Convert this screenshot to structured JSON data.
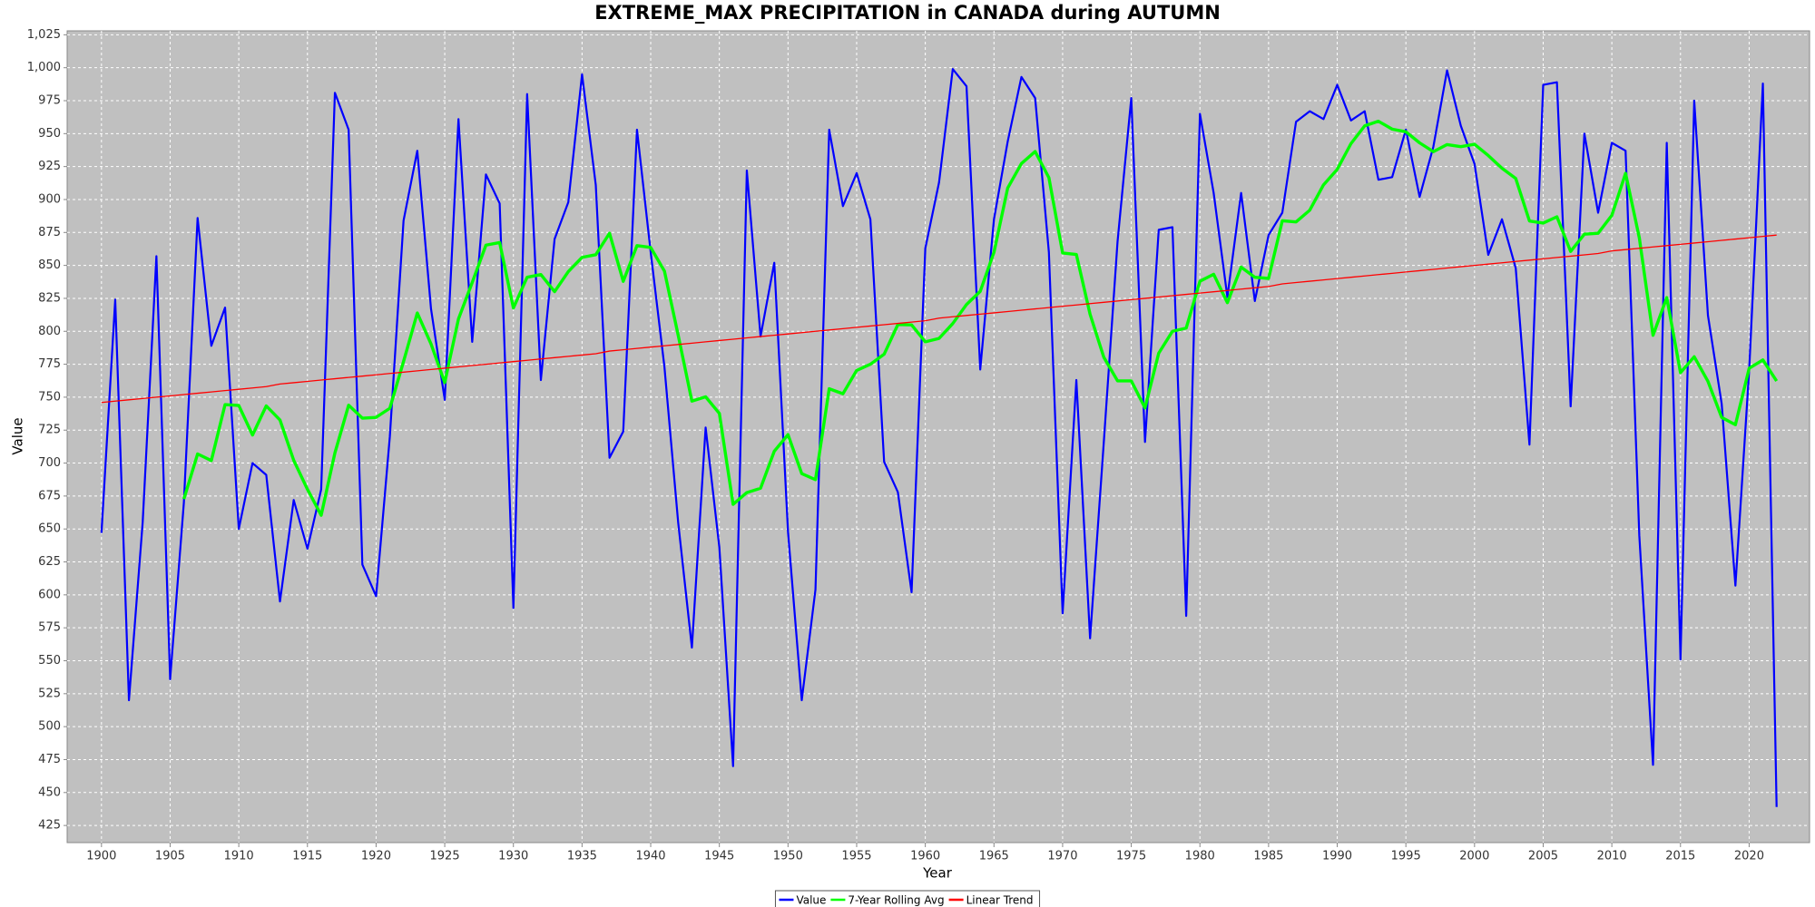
{
  "chart_data": {
    "type": "line",
    "title": "EXTREME_MAX PRECIPITATION in CANADA during AUTUMN",
    "x_label": "Year",
    "y_label": "Value",
    "x": [
      1900,
      1901,
      1902,
      1903,
      1904,
      1905,
      1906,
      1907,
      1908,
      1909,
      1910,
      1911,
      1912,
      1913,
      1914,
      1915,
      1916,
      1917,
      1918,
      1919,
      1920,
      1921,
      1922,
      1923,
      1924,
      1925,
      1926,
      1927,
      1928,
      1929,
      1930,
      1931,
      1932,
      1933,
      1934,
      1935,
      1936,
      1937,
      1938,
      1939,
      1940,
      1941,
      1942,
      1943,
      1944,
      1945,
      1946,
      1947,
      1948,
      1949,
      1950,
      1951,
      1952,
      1953,
      1954,
      1955,
      1956,
      1957,
      1958,
      1959,
      1960,
      1961,
      1962,
      1963,
      1964,
      1965,
      1966,
      1967,
      1968,
      1969,
      1970,
      1971,
      1972,
      1973,
      1974,
      1975,
      1976,
      1977,
      1978,
      1979,
      1980,
      1981,
      1982,
      1983,
      1984,
      1985,
      1986,
      1987,
      1988,
      1989,
      1990,
      1991,
      1992,
      1993,
      1994,
      1995,
      1996,
      1997,
      1998,
      1999,
      2000,
      2001,
      2002,
      2003,
      2004,
      2005,
      2006,
      2007,
      2008,
      2009,
      2010,
      2011,
      2012,
      2013,
      2014,
      2015,
      2016,
      2017,
      2018,
      2019,
      2020,
      2021,
      2022
    ],
    "series": [
      {
        "name": "Value",
        "color": "#0000ff",
        "values": [
          647,
          824,
          520,
          655,
          857,
          536,
          670,
          886,
          789,
          818,
          650,
          700,
          691,
          595,
          672,
          635,
          680,
          981,
          953,
          623,
          599,
          720,
          884,
          937,
          817,
          748,
          961,
          792,
          919,
          897,
          590,
          980,
          763,
          870,
          898,
          995,
          911,
          704,
          724,
          953,
          860,
          773,
          655,
          560,
          727,
          636,
          470,
          922,
          796,
          852,
          648,
          520,
          604,
          953,
          895,
          920,
          885,
          701,
          678,
          602,
          863,
          913,
          999,
          986,
          771,
          885,
          944,
          993,
          977,
          860,
          586,
          763,
          567,
          716,
          868,
          977,
          716,
          877,
          879,
          584,
          965,
          905,
          826,
          905,
          823,
          873,
          890,
          959,
          967,
          961,
          987,
          960,
          967,
          915,
          917,
          953,
          902,
          940,
          998,
          956,
          927,
          858,
          885,
          848,
          714,
          987,
          989,
          743,
          950,
          890,
          943,
          937,
          645,
          471,
          943,
          551,
          975,
          812,
          745,
          607,
          770,
          988,
          439
        ]
      },
      {
        "name": "7-Year Rolling Avg",
        "color": "#00ff00",
        "values": [
          null,
          null,
          null,
          null,
          null,
          null,
          672.7,
          706.9,
          701.9,
          744.4,
          743.7,
          721.3,
          743.4,
          732.7,
          702.1,
          680.1,
          660.4,
          707.7,
          743.9,
          734.1,
          734.7,
          741.6,
          777.1,
          813.9,
          790.4,
          761.1,
          809.4,
          837.0,
          865.4,
          867.3,
          817.7,
          841.0,
          843.1,
          830.1,
          845.3,
          856.1,
          858.1,
          874.4,
          837.9,
          865.0,
          863.6,
          845.7,
          797.1,
          747.0,
          750.3,
          737.7,
          668.7,
          677.6,
          680.9,
          709.0,
          721.6,
          692.0,
          687.4,
          756.4,
          752.6,
          770.3,
          775.0,
          782.6,
          805.1,
          804.9,
          792.0,
          794.6,
          805.9,
          820.3,
          830.3,
          859.9,
          908.7,
          927.3,
          936.4,
          916.6,
          859.4,
          858.3,
          812.9,
          780.3,
          762.4,
          762.4,
          741.9,
          783.4,
          800.0,
          802.4,
          838.0,
          843.3,
          821.7,
          848.7,
          841.0,
          840.1,
          883.9,
          883.0,
          891.9,
          911.1,
          922.9,
          942.4,
          955.9,
          959.4,
          953.4,
          951.4,
          943.0,
          936.3,
          941.7,
          940.1,
          941.9,
          933.4,
          923.7,
          916.0,
          883.7,
          882.1,
          886.9,
          860.6,
          873.7,
          874.4,
          888.0,
          919.9,
          871.0,
          797.0,
          825.6,
          768.6,
          780.7,
          762.0,
          734.6,
          729.1,
          771.9,
          778.3,
          762.3
        ]
      },
      {
        "name": "Linear Trend",
        "color": "#ff0000",
        "values": [
          746,
          747,
          748,
          749,
          750,
          751,
          752,
          753,
          754,
          755,
          756,
          757,
          758,
          760,
          761,
          762,
          763,
          764,
          765,
          766,
          767,
          768,
          769,
          770,
          771,
          772,
          773,
          774,
          775,
          776,
          777,
          778,
          779,
          780,
          781,
          782,
          783,
          785,
          786,
          787,
          788,
          789,
          790,
          791,
          792,
          793,
          794,
          795,
          796,
          797,
          798,
          799,
          800,
          801,
          802,
          803,
          804,
          805,
          806,
          807,
          808,
          810,
          811,
          812,
          813,
          814,
          815,
          816,
          817,
          818,
          819,
          820,
          821,
          822,
          823,
          824,
          825,
          826,
          827,
          828,
          829,
          830,
          831,
          832,
          833,
          834,
          836,
          837,
          838,
          839,
          840,
          841,
          842,
          843,
          844,
          845,
          846,
          847,
          848,
          849,
          850,
          851,
          852,
          853,
          854,
          855,
          856,
          857,
          858,
          859,
          861,
          862,
          863,
          864,
          865,
          866,
          867,
          868,
          869,
          870,
          871,
          872,
          873
        ]
      }
    ],
    "xlim": [
      1897.5,
      2024.4
    ],
    "xticks": [
      1900,
      1905,
      1910,
      1915,
      1920,
      1925,
      1930,
      1935,
      1940,
      1945,
      1950,
      1955,
      1960,
      1965,
      1970,
      1975,
      1980,
      1985,
      1990,
      1995,
      2000,
      2005,
      2010,
      2015,
      2020
    ],
    "ylim": [
      412,
      1028
    ],
    "yticks": [
      425,
      450,
      475,
      500,
      525,
      550,
      575,
      600,
      625,
      650,
      675,
      700,
      725,
      750,
      775,
      800,
      825,
      850,
      875,
      900,
      925,
      950,
      975,
      {
        "value": 1000,
        "label": "1,000"
      },
      {
        "value": 1025,
        "label": "1,025"
      }
    ],
    "grid": true,
    "legend": "bottom"
  }
}
